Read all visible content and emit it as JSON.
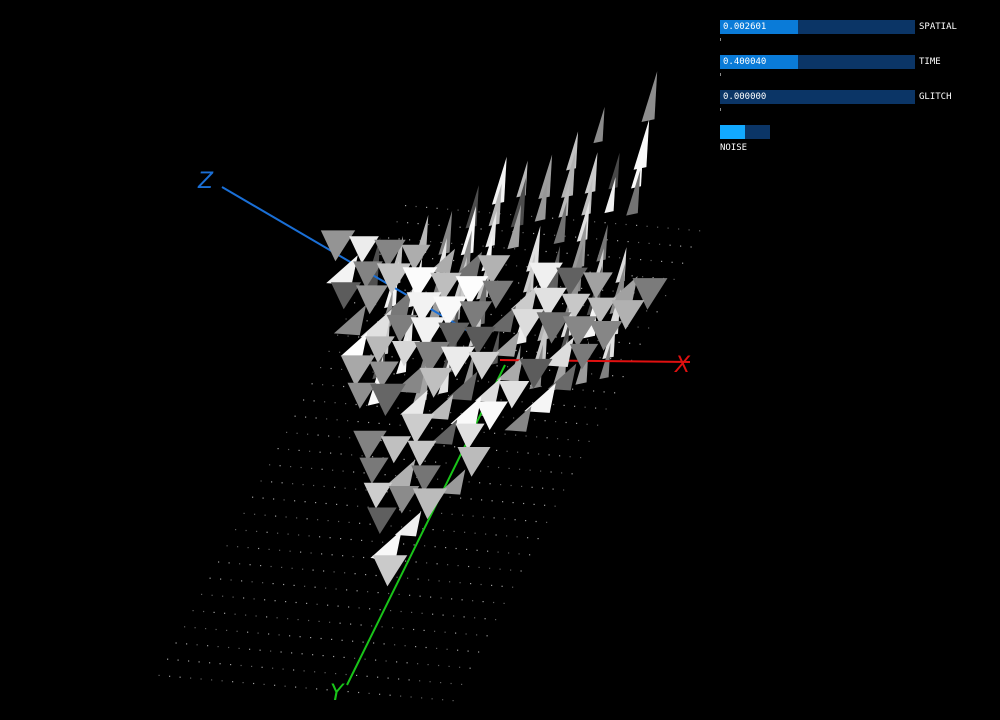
{
  "controls": {
    "spatial": {
      "label": "SPATIAL",
      "value_text": "0.002601",
      "fill": 0.4
    },
    "time": {
      "label": "TIME",
      "value_text": "0.400040",
      "fill": 0.4
    },
    "glitch": {
      "label": "GLITCH",
      "value_text": "0.000000",
      "fill": 0.0
    },
    "noise": {
      "label": "NOISE",
      "state": "on"
    }
  },
  "axes": {
    "x": {
      "label": "X",
      "color": "#e01010"
    },
    "y": {
      "label": "Y",
      "color": "#19c419"
    },
    "z": {
      "label": "Z",
      "color": "#1a6fd6"
    }
  },
  "colors": {
    "background": "#000000",
    "slider_track": "#0b3566",
    "slider_fill": "#0a7bd8",
    "toggle_on": "#12a9ff"
  }
}
